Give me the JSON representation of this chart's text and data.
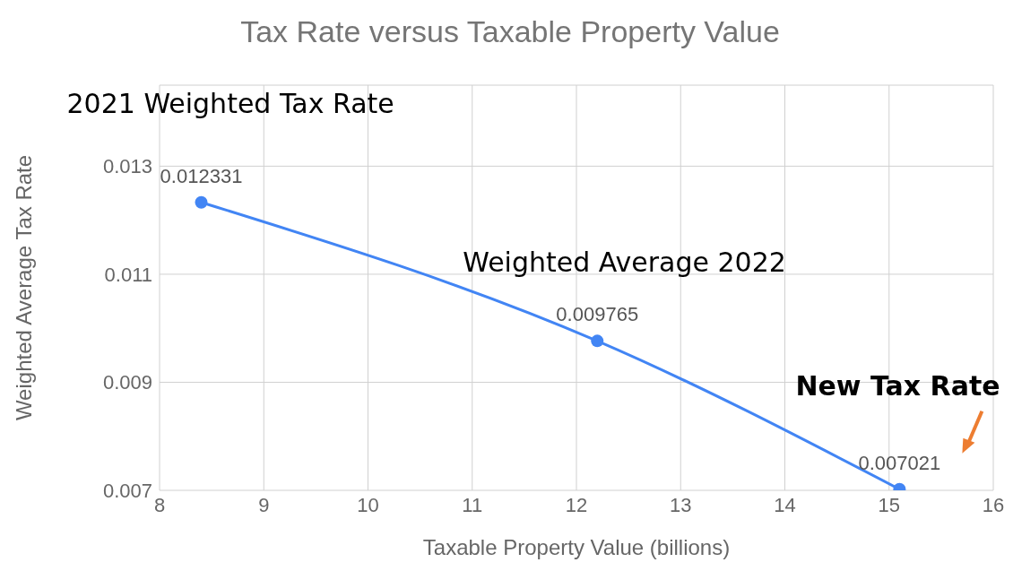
{
  "chart_data": {
    "type": "line",
    "title": "Tax Rate versus Taxable Property Value",
    "xlabel": "Taxable Property Value (billions)",
    "ylabel": "Weighted Average Tax Rate",
    "x": [
      8.4,
      12.2,
      15.1
    ],
    "series": [
      {
        "color": "#4285f4",
        "values": [
          0.012331,
          0.009765,
          0.007021
        ]
      }
    ],
    "xlim": [
      8,
      16
    ],
    "xticks": [
      8,
      9,
      10,
      11,
      12,
      13,
      14,
      15,
      16
    ],
    "ylim": [
      0.007,
      0.0145
    ],
    "yticks": [
      0.007,
      0.009,
      0.011,
      0.013
    ],
    "grid": true,
    "marker": "circle",
    "line_style": "solid",
    "data_labels": true,
    "legend": false,
    "annotations": [
      "2021 Weighted Tax Rate",
      "Weighted Average 2022",
      "New Tax Rate"
    ]
  }
}
